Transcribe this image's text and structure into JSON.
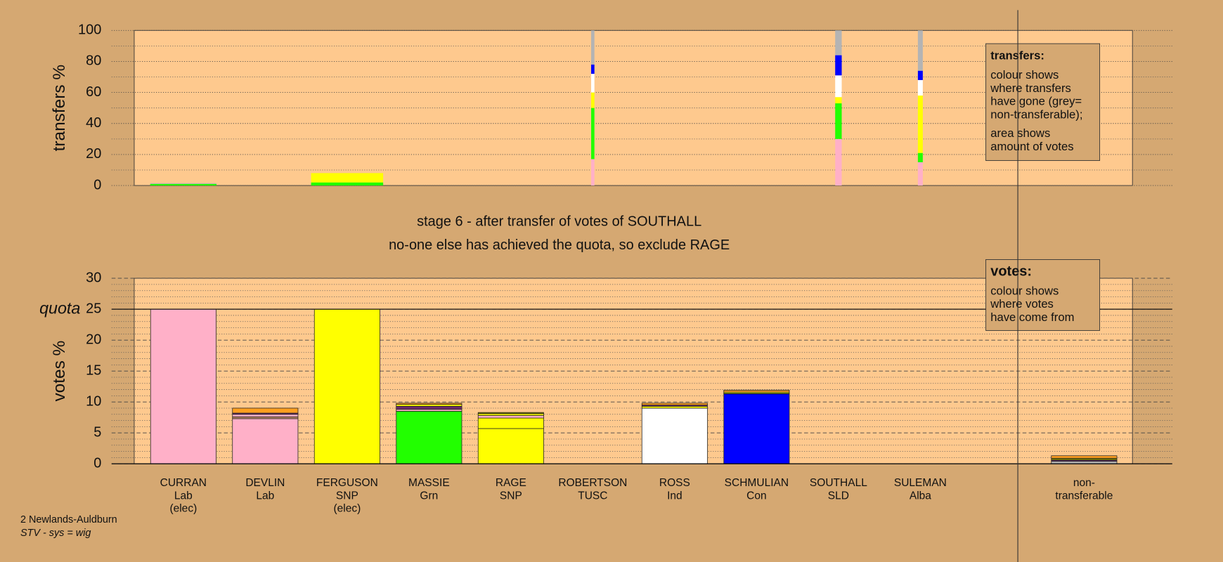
{
  "chart_data": [
    {
      "type": "transfers",
      "y_label": "transfers %",
      "ylim": [
        0,
        100
      ],
      "yticks": [
        0,
        20,
        40,
        60,
        80,
        100
      ],
      "minor_yticks": [
        10,
        30,
        50,
        70,
        90
      ],
      "bar_widths": [
        0.81,
        null,
        0.88,
        null,
        null,
        0.04,
        null,
        null,
        0.08,
        0.06
      ],
      "series": [
        {
          "color": "#ffb0c8",
          "values": [
            null,
            null,
            null,
            null,
            null,
            17,
            null,
            null,
            30,
            15
          ]
        },
        {
          "color": "#22ff00",
          "values": [
            1,
            null,
            2,
            null,
            null,
            33,
            null,
            null,
            23,
            6
          ]
        },
        {
          "color": "#ffff00",
          "values": [
            null,
            null,
            6,
            null,
            null,
            10,
            null,
            null,
            4,
            37
          ]
        },
        {
          "color": "#ffffff",
          "values": [
            null,
            null,
            null,
            null,
            null,
            12,
            null,
            null,
            14,
            10
          ]
        },
        {
          "color": "#0000ff",
          "values": [
            null,
            null,
            null,
            null,
            null,
            6,
            null,
            null,
            13,
            6
          ]
        },
        {
          "color": "#b4b4b4",
          "values": [
            0.5,
            null,
            null,
            null,
            null,
            22,
            null,
            null,
            16,
            26
          ]
        }
      ],
      "legend": {
        "title": "transfers:",
        "paragraphs": [
          [
            "colour shows",
            "where transfers",
            "have gone (grey=",
            "non-transferable);"
          ],
          [
            "area shows",
            "amount of votes"
          ]
        ]
      }
    },
    {
      "type": "votes",
      "title": "stage 6 - after transfer of votes of SOUTHALL",
      "subtitle": "no-one else has achieved the quota, so exclude RAGE",
      "y_label": "votes %",
      "ylim": [
        0,
        30
      ],
      "yticks": [
        0,
        5,
        10,
        15,
        20,
        25,
        30
      ],
      "minor_yticks": [
        1,
        2,
        3,
        4,
        6,
        7,
        8,
        9,
        11,
        12,
        13,
        14,
        16,
        17,
        18,
        19,
        21,
        22,
        23,
        24,
        26,
        27,
        28,
        29
      ],
      "quota": 25,
      "quota_label": "quota",
      "categories": [
        [
          "CURRAN",
          "Lab",
          "(elec)"
        ],
        [
          "DEVLIN",
          "Lab"
        ],
        [
          "FERGUSON",
          "SNP",
          "(elec)"
        ],
        [
          "MASSIE",
          "Grn"
        ],
        [
          "RAGE",
          "SNP"
        ],
        [
          "ROBERTSON",
          "TUSC"
        ],
        [
          "ROSS",
          "Ind"
        ],
        [
          "SCHMULIAN",
          "Con"
        ],
        [
          "SOUTHALL",
          "SLD"
        ],
        [
          "SULEMAN",
          "Alba"
        ],
        null,
        [
          "non-",
          "transferable"
        ]
      ],
      "segments": [
        [
          {
            "value": 25,
            "color": "#ffb0c8"
          }
        ],
        [
          {
            "value": 7.3,
            "color": "#ffb0c8"
          },
          {
            "value": 0.3,
            "color": "#c08a6a"
          },
          {
            "value": 0.4,
            "color": "#ffb0c8"
          },
          {
            "value": 0.2,
            "color": "#6a2a6a"
          },
          {
            "value": 0.8,
            "color": "#ff9f20"
          }
        ],
        [
          {
            "value": 25,
            "color": "#ffff00"
          }
        ],
        [
          {
            "value": 8.5,
            "color": "#22ff00"
          },
          {
            "value": 0.3,
            "color": "#ffb0c8"
          },
          {
            "value": 0.5,
            "color": "#6a2a6a"
          },
          {
            "value": 0.3,
            "color": "#ffff00"
          },
          {
            "value": 0.2,
            "color": "#ff9f20"
          }
        ],
        [
          {
            "value": 5.7,
            "color": "#ffff00"
          },
          {
            "value": 1.7,
            "color": "#ffff00"
          },
          {
            "value": 0.4,
            "color": "#ffb0c8"
          },
          {
            "value": 0.3,
            "color": "#ffff00"
          },
          {
            "value": 0.2,
            "color": "#808000"
          }
        ],
        [
          {
            "value": 0,
            "color": "#c0c0c0"
          }
        ],
        [
          {
            "value": 9.0,
            "color": "#ffffff"
          },
          {
            "value": 0.3,
            "color": "#ffff00"
          },
          {
            "value": 0.2,
            "color": "#6a2a6a"
          },
          {
            "value": 0.3,
            "color": "#ff9f20"
          }
        ],
        [
          {
            "value": 11.3,
            "color": "#0000ff"
          },
          {
            "value": 0.1,
            "color": "#22ff00"
          },
          {
            "value": 0.2,
            "color": "#ffff00"
          },
          {
            "value": 0.3,
            "color": "#ff9f20"
          }
        ],
        [
          {
            "value": 0,
            "color": "#ffff00"
          }
        ],
        [
          {
            "value": 0,
            "color": "#c0c0c0"
          }
        ],
        [],
        [
          {
            "value": 0.4,
            "color": "#b4b4b4"
          },
          {
            "value": 0.2,
            "color": "#6a2a6a"
          },
          {
            "value": 0.3,
            "color": "#808000"
          },
          {
            "value": 0.4,
            "color": "#ff9f20"
          }
        ]
      ],
      "legend": {
        "title": "votes:",
        "paragraphs": [
          [
            "colour shows",
            "where votes",
            "have come from"
          ]
        ]
      }
    }
  ],
  "footer": [
    "2 Newlands-Auldburn",
    "STV - sys = wig"
  ]
}
